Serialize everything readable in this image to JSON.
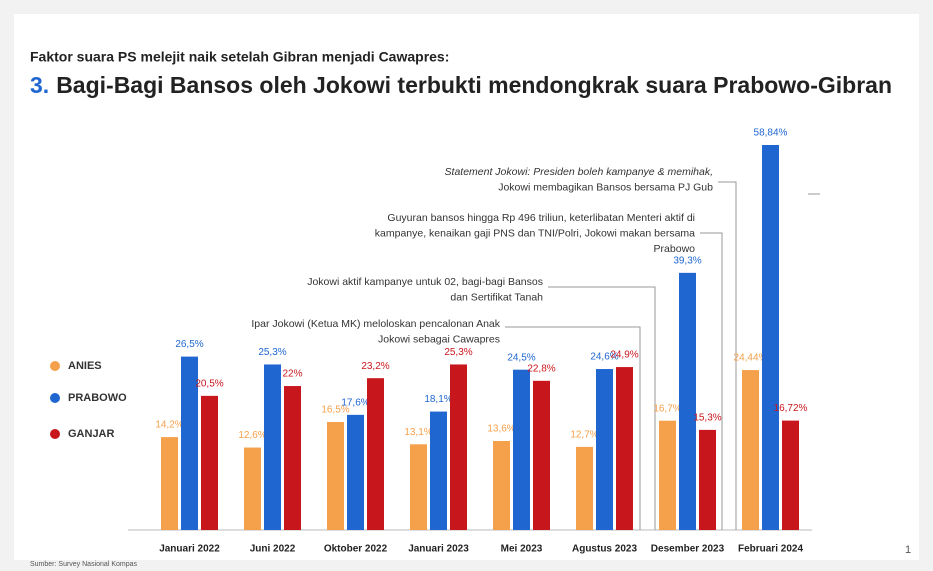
{
  "chart_data": {
    "type": "bar",
    "subtitle": "Faktor suara PS melejit naik setelah Gibran menjadi Cawapres:",
    "title_prefix": "3.",
    "title": "Bagi-Bagi Bansos oleh Jokowi terbukti mendongkrak suara Prabowo-Gibran",
    "categories": [
      "Januari 2022",
      "Juni 2022",
      "Oktober 2022",
      "Januari 2023",
      "Mei 2023",
      "Agustus 2023",
      "Desember 2023",
      "Februari 2024"
    ],
    "series": [
      {
        "name": "ANIES",
        "color": "#f5a04a",
        "values": [
          14.2,
          12.6,
          16.5,
          13.1,
          13.6,
          12.7,
          16.7,
          24.44
        ],
        "value_labels": [
          "14,2%",
          "12,6%",
          "16,5%",
          "13,1%",
          "13,6%",
          "12,7%",
          "16,7%",
          "24,44%"
        ]
      },
      {
        "name": "PRABOWO",
        "color": "#1f66d1",
        "values": [
          26.5,
          25.3,
          17.6,
          18.1,
          24.5,
          24.6,
          39.3,
          58.84
        ],
        "value_labels": [
          "26,5%",
          "25,3%",
          "17,6%",
          "18,1%",
          "24,5%",
          "24,6%",
          "39,3%",
          "58,84%"
        ]
      },
      {
        "name": "GANJAR",
        "color": "#c8161d",
        "values": [
          20.5,
          22,
          23.2,
          25.3,
          22.8,
          24.9,
          15.3,
          16.72
        ],
        "value_labels": [
          "20,5%",
          "22%",
          "23,2%",
          "25,3%",
          "22,8%",
          "24,9%",
          "15,3%",
          "16,72%"
        ]
      }
    ],
    "annotations": [
      {
        "lines": [
          "Statement Jokowi: Presiden boleh kampanye & memihak,",
          "Jokowi membagikan Bansos bersama  PJ Gub"
        ]
      },
      {
        "lines": [
          "Guyuran bansos hingga Rp 496 triliun, keterlibatan Menteri aktif di",
          "kampanye, kenaikan gaji PNS dan TNI/Polri, Jokowi makan bersama",
          "Prabowo"
        ]
      },
      {
        "lines": [
          "Jokowi aktif kampanye untuk 02, bagi-bagi Bansos",
          "dan Sertifikat Tanah"
        ]
      },
      {
        "lines": [
          "Ipar Jokowi (Ketua MK) meloloskan pencalonan Anak",
          "Jokowi sebagai Cawapres"
        ]
      }
    ],
    "source": "Sumber: Survey Nasional Kompas",
    "page_number": "1"
  }
}
